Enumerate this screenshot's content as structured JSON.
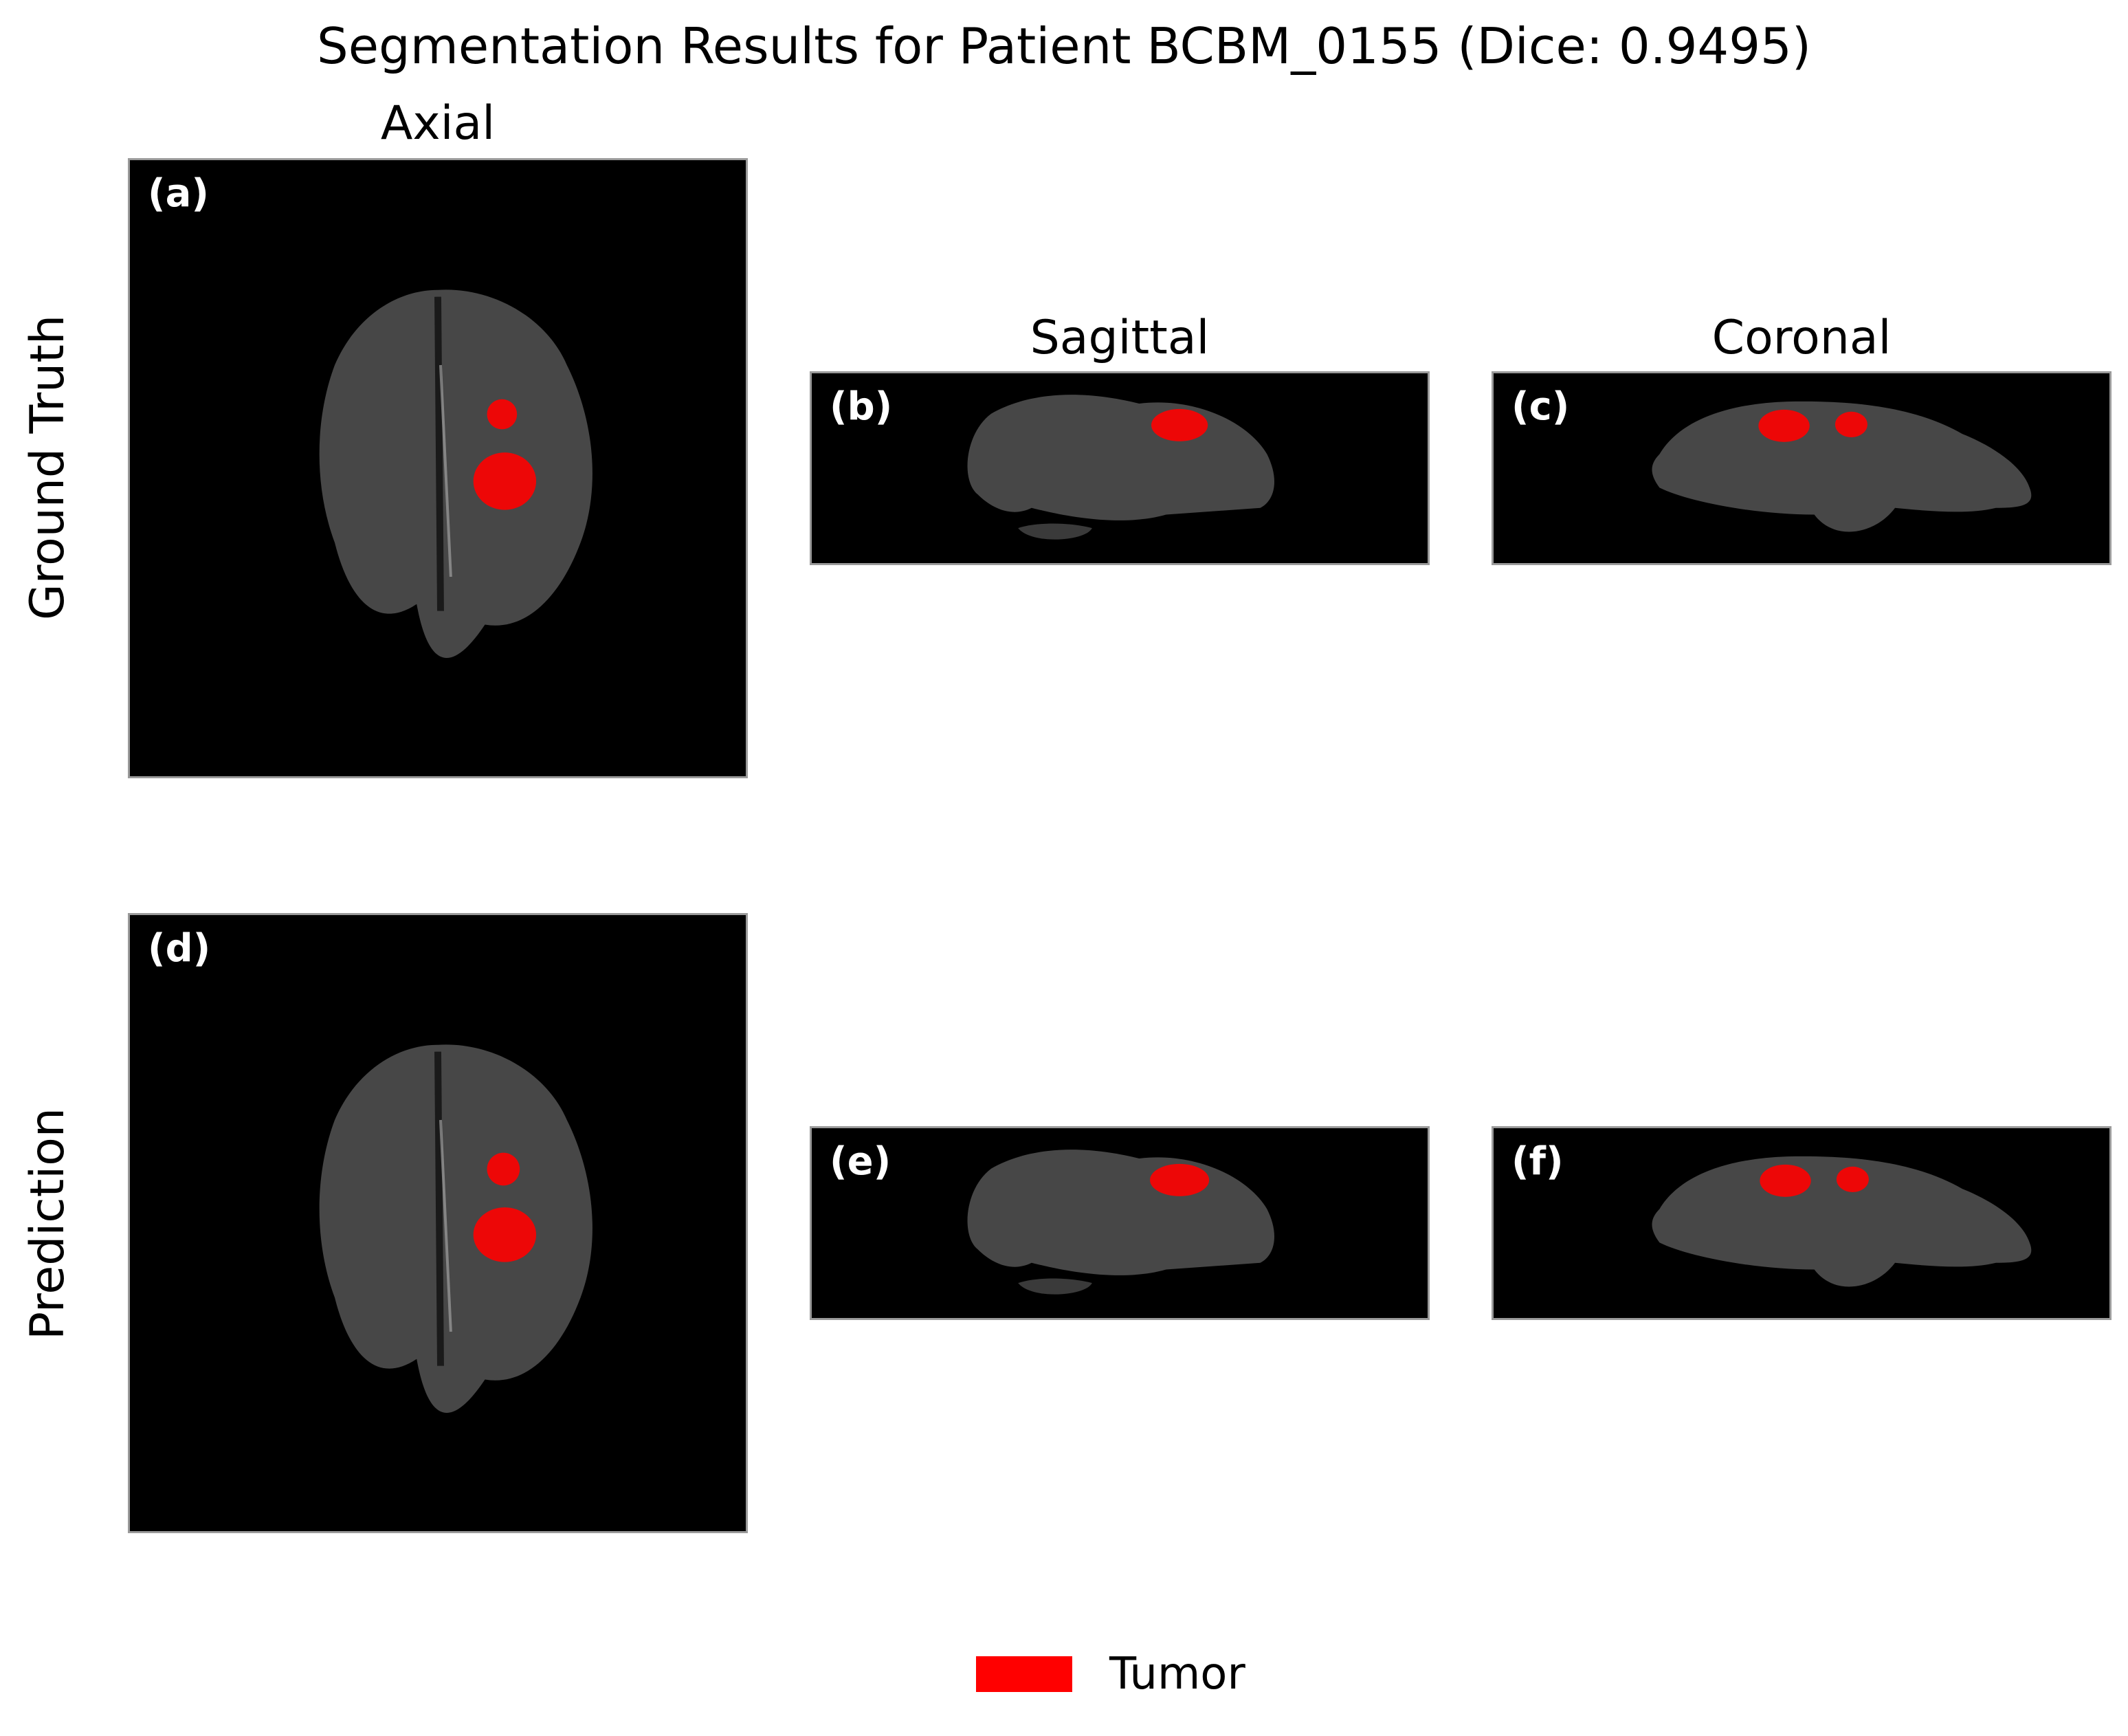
{
  "figure": {
    "title": "Segmentation Results for Patient BCBM_0155 (Dice: 0.9495)",
    "columns": [
      "Axial",
      "Sagittal",
      "Coronal"
    ],
    "rows": [
      "Ground Truth",
      "Prediction"
    ],
    "panels": [
      {
        "label": "(a)",
        "view": "axial"
      },
      {
        "label": "(b)",
        "view": "sagittal"
      },
      {
        "label": "(c)",
        "view": "coronal"
      },
      {
        "label": "(d)",
        "view": "axial"
      },
      {
        "label": "(e)",
        "view": "sagittal"
      },
      {
        "label": "(f)",
        "view": "coronal"
      }
    ],
    "legend": {
      "label": "Tumor",
      "color": "#ff0000"
    }
  },
  "colors": {
    "tumor": "#ff0000",
    "tissue": "#4a4a4a",
    "background": "#000000",
    "panel_border": "#9a9a9a"
  }
}
